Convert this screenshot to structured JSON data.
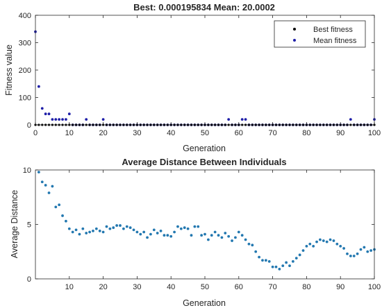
{
  "chart_data": [
    {
      "type": "scatter",
      "title": "Best: 0.000195834 Mean: 20.0002",
      "xlabel": "Generation",
      "ylabel": "Fitness value",
      "xlim": [
        0,
        100
      ],
      "ylim": [
        0,
        400
      ],
      "xticks": [
        0,
        10,
        20,
        30,
        40,
        50,
        60,
        70,
        80,
        90,
        100
      ],
      "yticks": [
        0,
        100,
        200,
        300,
        400
      ],
      "grid": false,
      "legend_position": "top-right",
      "series": [
        {
          "name": "Best fitness",
          "color": "#000000",
          "x": [
            0,
            1,
            2,
            3,
            4,
            5,
            6,
            7,
            8,
            9,
            10,
            11,
            12,
            13,
            14,
            15,
            16,
            17,
            18,
            19,
            20,
            21,
            22,
            23,
            24,
            25,
            26,
            27,
            28,
            29,
            30,
            31,
            32,
            33,
            34,
            35,
            36,
            37,
            38,
            39,
            40,
            41,
            42,
            43,
            44,
            45,
            46,
            47,
            48,
            49,
            50,
            51,
            52,
            53,
            54,
            55,
            56,
            57,
            58,
            59,
            60,
            61,
            62,
            63,
            64,
            65,
            66,
            67,
            68,
            69,
            70,
            71,
            72,
            73,
            74,
            75,
            76,
            77,
            78,
            79,
            80,
            81,
            82,
            83,
            84,
            85,
            86,
            87,
            88,
            89,
            90,
            91,
            92,
            93,
            94,
            95,
            96,
            97,
            98,
            99,
            100
          ],
          "y": [
            0,
            0,
            0,
            0,
            0,
            0,
            0,
            0,
            0,
            0,
            0,
            0,
            0,
            0,
            0,
            0,
            0,
            0,
            0,
            0,
            0,
            0,
            0,
            0,
            0,
            0,
            0,
            0,
            0,
            0,
            0,
            0,
            0,
            0,
            0,
            0,
            0,
            0,
            0,
            0,
            0,
            0,
            0,
            0,
            0,
            0,
            0,
            0,
            0,
            0,
            0,
            0,
            0,
            0,
            0,
            0,
            0,
            0,
            0,
            0,
            0,
            0,
            0,
            0,
            0,
            0,
            0,
            0,
            0,
            0,
            0,
            0,
            0,
            0,
            0,
            0,
            0,
            0,
            0,
            0,
            0,
            0,
            0,
            0,
            0,
            0,
            0,
            0,
            0,
            0,
            0,
            0,
            0,
            0,
            0,
            0,
            0,
            0,
            0,
            0,
            0
          ]
        },
        {
          "name": "Mean fitness",
          "color": "#1f1fa8",
          "x": [
            0,
            1,
            2,
            3,
            4,
            5,
            6,
            7,
            8,
            9,
            10,
            11,
            12,
            13,
            14,
            15,
            16,
            17,
            18,
            19,
            20,
            21,
            22,
            23,
            24,
            25,
            26,
            27,
            28,
            29,
            30,
            31,
            32,
            33,
            34,
            35,
            36,
            37,
            38,
            39,
            40,
            41,
            42,
            43,
            44,
            45,
            46,
            47,
            48,
            49,
            50,
            51,
            52,
            53,
            54,
            55,
            56,
            57,
            58,
            59,
            60,
            61,
            62,
            63,
            64,
            65,
            66,
            67,
            68,
            69,
            70,
            71,
            72,
            73,
            74,
            75,
            76,
            77,
            78,
            79,
            80,
            81,
            82,
            83,
            84,
            85,
            86,
            87,
            88,
            89,
            90,
            91,
            92,
            93,
            94,
            95,
            96,
            97,
            98,
            99,
            100
          ],
          "y": [
            340,
            140,
            60,
            40,
            40,
            20,
            20,
            20,
            20,
            20,
            40,
            0,
            0,
            0,
            0,
            20,
            0,
            0,
            0,
            0,
            20,
            0,
            0,
            0,
            0,
            0,
            0,
            0,
            0,
            0,
            0,
            0,
            0,
            0,
            0,
            0,
            0,
            0,
            0,
            0,
            0,
            0,
            0,
            0,
            0,
            0,
            0,
            0,
            0,
            0,
            0,
            0,
            0,
            0,
            0,
            0,
            0,
            20,
            0,
            0,
            0,
            20,
            20,
            0,
            0,
            0,
            0,
            0,
            0,
            0,
            0,
            0,
            0,
            0,
            0,
            0,
            0,
            0,
            0,
            0,
            0,
            0,
            0,
            0,
            0,
            0,
            0,
            0,
            0,
            0,
            0,
            0,
            0,
            20,
            0,
            0,
            0,
            0,
            0,
            0,
            20
          ]
        }
      ]
    },
    {
      "type": "scatter",
      "title": "Average Distance Between Individuals",
      "xlabel": "Generation",
      "ylabel": "Average Distance",
      "xlim": [
        0,
        100
      ],
      "ylim": [
        0,
        10
      ],
      "xticks": [
        10,
        20,
        30,
        40,
        50,
        60,
        70,
        80,
        90,
        100
      ],
      "yticks": [
        0,
        5,
        10
      ],
      "grid": false,
      "series": [
        {
          "color": "#2378b0",
          "x": [
            1,
            2,
            3,
            4,
            5,
            6,
            7,
            8,
            9,
            10,
            11,
            12,
            13,
            14,
            15,
            16,
            17,
            18,
            19,
            20,
            21,
            22,
            23,
            24,
            25,
            26,
            27,
            28,
            29,
            30,
            31,
            32,
            33,
            34,
            35,
            36,
            37,
            38,
            39,
            40,
            41,
            42,
            43,
            44,
            45,
            46,
            47,
            48,
            49,
            50,
            51,
            52,
            53,
            54,
            55,
            56,
            57,
            58,
            59,
            60,
            61,
            62,
            63,
            64,
            65,
            66,
            67,
            68,
            69,
            70,
            71,
            72,
            73,
            74,
            75,
            76,
            77,
            78,
            79,
            80,
            81,
            82,
            83,
            84,
            85,
            86,
            87,
            88,
            89,
            90,
            91,
            92,
            93,
            94,
            95,
            96,
            97,
            98,
            99,
            100
          ],
          "y": [
            9.8,
            8.9,
            8.6,
            7.9,
            8.5,
            6.6,
            6.8,
            5.8,
            5.3,
            4.6,
            4.3,
            4.5,
            4.1,
            4.6,
            4.2,
            4.3,
            4.4,
            4.6,
            4.4,
            4.3,
            4.8,
            4.6,
            4.7,
            4.9,
            4.9,
            4.6,
            4.8,
            4.7,
            4.5,
            4.3,
            4.1,
            4.3,
            3.8,
            4.1,
            4.5,
            4.2,
            4.4,
            4.0,
            4.0,
            3.9,
            4.3,
            4.8,
            4.6,
            4.7,
            4.6,
            4.0,
            4.8,
            4.8,
            4.0,
            4.1,
            3.6,
            4.0,
            4.3,
            4.0,
            3.8,
            4.2,
            3.9,
            3.5,
            3.8,
            4.3,
            4.0,
            3.6,
            3.2,
            3.1,
            2.5,
            2.0,
            1.7,
            1.7,
            1.6,
            1.1,
            1.1,
            0.9,
            1.2,
            1.5,
            1.2,
            1.6,
            1.9,
            2.2,
            2.6,
            3.0,
            3.2,
            3.0,
            3.4,
            3.6,
            3.5,
            3.4,
            3.6,
            3.5,
            3.2,
            3.0,
            2.8,
            2.3,
            2.1,
            2.1,
            2.3,
            2.7,
            2.9,
            2.5,
            2.6,
            2.7
          ]
        }
      ]
    }
  ]
}
